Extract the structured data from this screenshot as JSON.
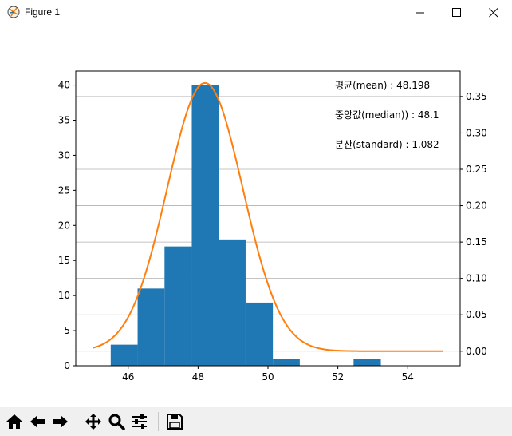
{
  "window": {
    "title": "Figure 1"
  },
  "icons": {
    "app": "matplotlib-figure-icon",
    "minimize": "minimize-icon",
    "maximize": "maximize-icon",
    "close": "close-icon"
  },
  "toolbar": {
    "buttons": [
      "home-icon",
      "back-arrow-icon",
      "forward-arrow-icon",
      "pan-icon",
      "zoom-icon",
      "configure-subplots-icon",
      "save-icon"
    ]
  },
  "colors": {
    "bars": "#1f77b4",
    "curve": "#ff7f0e",
    "grid": "#b0b0b0"
  },
  "chart_data": {
    "type": "bar",
    "title": "",
    "xlabel": "",
    "ylabel": "",
    "xlim": [
      44.5,
      55.5
    ],
    "ylim_left": [
      0,
      42
    ],
    "ylim_right": [
      -0.02,
      0.385
    ],
    "x_ticks": [
      "46",
      "48",
      "50",
      "52",
      "54"
    ],
    "x_tick_values": [
      46,
      48,
      50,
      52,
      54
    ],
    "y_ticks_left": [
      "0",
      "5",
      "10",
      "15",
      "20",
      "25",
      "30",
      "35",
      "40"
    ],
    "y_tick_values_left": [
      0,
      5,
      10,
      15,
      20,
      25,
      30,
      35,
      40
    ],
    "y_ticks_right": [
      "0.00",
      "0.05",
      "0.10",
      "0.15",
      "0.20",
      "0.25",
      "0.30",
      "0.35"
    ],
    "y_tick_values_right": [
      0,
      0.05,
      0.1,
      0.15,
      0.2,
      0.25,
      0.3,
      0.35
    ],
    "grid": "right-axis horizontal lines",
    "histogram": {
      "bin_edges": [
        45.5,
        46.27,
        47.04,
        47.82,
        48.59,
        49.36,
        50.14,
        50.91,
        51.68,
        52.45,
        53.23
      ],
      "counts": [
        3,
        11,
        17,
        40,
        18,
        9,
        1,
        0,
        0,
        1
      ]
    },
    "normal_curve": {
      "mean": 48.198,
      "std": 1.082,
      "x_range": [
        45,
        55
      ]
    },
    "annotations": [
      "평균(mean) : 48.198",
      "중앙값(median)) : 48.1",
      "분산(standard)  : 1.082"
    ]
  }
}
